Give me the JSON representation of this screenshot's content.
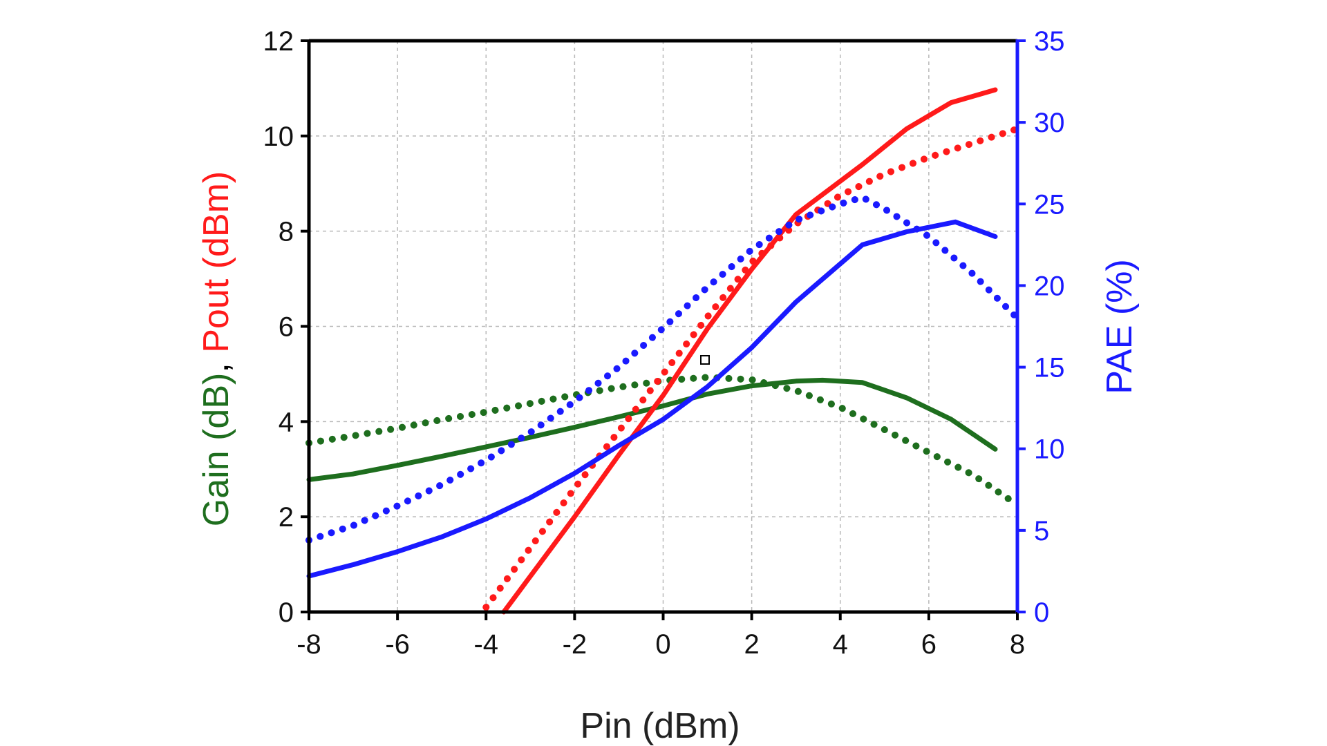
{
  "chart_data": {
    "type": "line",
    "xlabel": "Pin (dBm)",
    "ylabel_left": [
      {
        "text": "Gain (dB)",
        "color": "#1e6e1e"
      },
      {
        "text": ", ",
        "color": "#000000"
      },
      {
        "text": "Pout (dBm)",
        "color": "#ff1a1a"
      }
    ],
    "ylabel_right": "PAE (%)",
    "xlim": [
      -8,
      8
    ],
    "ylim_left": [
      0,
      12
    ],
    "ylim_right": [
      0,
      35
    ],
    "x_ticks": [
      -8,
      -6,
      -4,
      -2,
      0,
      2,
      4,
      6,
      8
    ],
    "y_left_ticks": [
      0,
      2,
      4,
      6,
      8,
      10,
      12
    ],
    "y_right_ticks": [
      0,
      5,
      10,
      15,
      20,
      25,
      30,
      35
    ],
    "grid": true,
    "colors": {
      "gain": "#1e6e1e",
      "pout": "#ff1a1a",
      "pae": "#1a1aff",
      "axis": "#000000",
      "right_axis": "#1a1aff"
    },
    "series": [
      {
        "key": "gain_solid",
        "axis": "left",
        "color": "#1e6e1e",
        "style": "solid",
        "x": [
          -8,
          -7,
          -6,
          -5,
          -4,
          -3,
          -2,
          -1,
          0,
          1,
          2,
          3,
          3.6,
          4.5,
          5.5,
          6.5,
          7.5
        ],
        "y": [
          2.78,
          2.9,
          3.08,
          3.27,
          3.47,
          3.67,
          3.88,
          4.1,
          4.33,
          4.58,
          4.75,
          4.85,
          4.87,
          4.82,
          4.5,
          4.05,
          3.42
        ]
      },
      {
        "key": "gain_dotted",
        "axis": "left",
        "color": "#1e6e1e",
        "style": "dotted",
        "x": [
          -8,
          -7,
          -6,
          -5,
          -4,
          -3,
          -2,
          -1,
          0,
          1,
          2,
          3,
          4,
          5,
          6,
          7,
          8
        ],
        "y": [
          3.55,
          3.7,
          3.86,
          4.04,
          4.2,
          4.38,
          4.56,
          4.72,
          4.86,
          4.93,
          4.88,
          4.65,
          4.3,
          3.83,
          3.35,
          2.88,
          2.25
        ]
      },
      {
        "key": "pout_solid",
        "axis": "left",
        "color": "#ff1a1a",
        "style": "solid",
        "x": [
          -3.6,
          -3,
          -2,
          -1,
          0,
          1,
          2,
          3,
          4.5,
          5.5,
          6.5,
          7.5
        ],
        "y": [
          0.0,
          0.75,
          2.0,
          3.3,
          4.55,
          5.95,
          7.2,
          8.35,
          9.4,
          10.15,
          10.7,
          10.97
        ]
      },
      {
        "key": "pout_dotted",
        "axis": "left",
        "color": "#ff1a1a",
        "style": "dotted",
        "x": [
          -4,
          -3,
          -2,
          -1,
          0,
          1,
          2,
          3,
          4,
          5,
          6,
          7,
          8
        ],
        "y": [
          0.1,
          1.35,
          2.6,
          3.8,
          5.0,
          6.2,
          7.35,
          8.15,
          8.75,
          9.2,
          9.55,
          9.85,
          10.15
        ]
      },
      {
        "key": "pae_solid",
        "axis": "right",
        "color": "#1a1aff",
        "style": "solid",
        "x": [
          -8,
          -7,
          -6,
          -5,
          -4,
          -3,
          -2,
          -1,
          0,
          1,
          2,
          3,
          4.5,
          5.5,
          6.6,
          7.5
        ],
        "y": [
          2.2,
          2.9,
          3.7,
          4.6,
          5.7,
          7.0,
          8.5,
          10.2,
          11.8,
          13.8,
          16.2,
          19.0,
          22.5,
          23.3,
          23.9,
          23.0
        ]
      },
      {
        "key": "pae_dotted",
        "axis": "right",
        "color": "#1a1aff",
        "style": "dotted",
        "x": [
          -8,
          -7,
          -6,
          -5,
          -4,
          -3,
          -2,
          -1,
          0,
          1,
          2,
          3,
          4,
          4.5,
          5,
          6,
          7,
          8
        ],
        "y": [
          4.4,
          5.3,
          6.5,
          7.8,
          9.3,
          11.0,
          12.9,
          15.0,
          17.4,
          19.9,
          22.2,
          24.0,
          25.0,
          25.4,
          24.7,
          23.0,
          20.7,
          18.0
        ]
      }
    ]
  }
}
